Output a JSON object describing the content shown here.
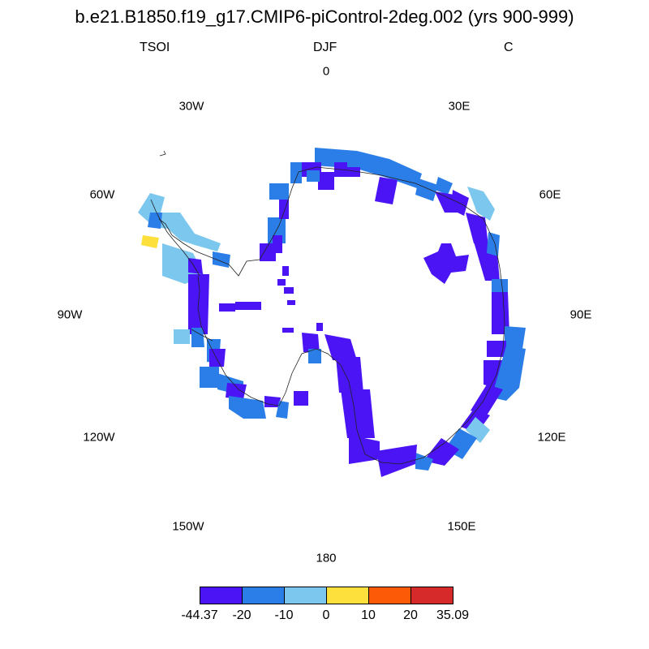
{
  "title": "b.e21.B1850.f19_g17.CMIP6-piControl-2deg.002 (yrs 900-999)",
  "variable": "TSOI",
  "season": "DJF",
  "units": "C",
  "longitude_labels": {
    "0": "0",
    "30E": "30E",
    "60E": "60E",
    "90E": "90E",
    "120E": "120E",
    "150E": "150E",
    "180": "180",
    "150W": "150W",
    "120W": "120W",
    "90W": "90W",
    "60W": "60W",
    "30W": "30W"
  },
  "colorbar": {
    "colors": [
      "#4a14f5",
      "#2b7ee8",
      "#7cc7ee",
      "#fde03b",
      "#fd5a08",
      "#d62a2a"
    ],
    "labels": [
      "-44.37",
      "-20",
      "-10",
      "0",
      "10",
      "20",
      "35.09"
    ]
  }
}
